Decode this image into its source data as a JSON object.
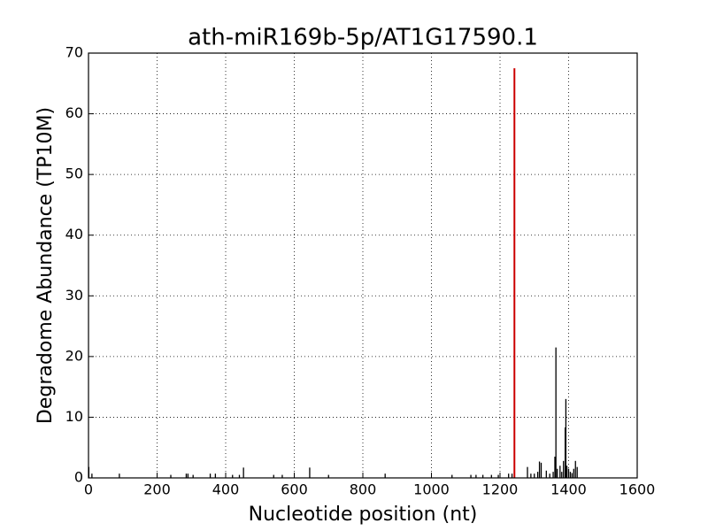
{
  "chart_data": {
    "type": "bar",
    "title": "ath-miR169b-5p/AT1G17590.1",
    "x_label": "Nucleotide position (nt)",
    "y_label": "Degradome Abundance (TP10M)",
    "xlim": [
      0,
      1600
    ],
    "xticks": [
      0,
      200,
      400,
      600,
      800,
      1000,
      1200,
      1400,
      1600
    ],
    "ylim": [
      0,
      70
    ],
    "yticks": [
      0,
      10,
      20,
      30,
      40,
      50,
      60,
      70
    ],
    "grid": true,
    "series": [
      {
        "color": "#000000",
        "x": [
          1,
          10,
          90,
          240,
          285,
          290,
          305,
          355,
          370,
          420,
          440,
          452,
          540,
          565,
          645,
          700,
          865,
          1060,
          1115,
          1130,
          1150,
          1175,
          1195,
          1225,
          1235,
          1280,
          1290,
          1300,
          1310,
          1315,
          1320,
          1335,
          1345,
          1355,
          1360,
          1363,
          1367,
          1375,
          1380,
          1385,
          1390,
          1392,
          1395,
          1400,
          1405,
          1410,
          1415,
          1420,
          1425
        ],
        "values": [
          1.8,
          0.7,
          0.7,
          0.5,
          0.7,
          0.7,
          0.5,
          0.7,
          0.7,
          0.5,
          0.5,
          1.7,
          0.5,
          0.5,
          1.7,
          0.5,
          0.7,
          0.5,
          0.5,
          0.5,
          0.5,
          0.5,
          0.5,
          0.7,
          0.7,
          1.8,
          0.7,
          0.7,
          1.0,
          2.7,
          2.5,
          1.2,
          0.7,
          1.0,
          3.5,
          21.5,
          1.5,
          2.0,
          1.0,
          2.8,
          8.3,
          13,
          2.0,
          1.5,
          1.0,
          0.8,
          1.5,
          2.8,
          1.8
        ]
      },
      {
        "color": "#cc0000",
        "x": [
          1242
        ],
        "values": [
          67.5
        ]
      }
    ]
  }
}
